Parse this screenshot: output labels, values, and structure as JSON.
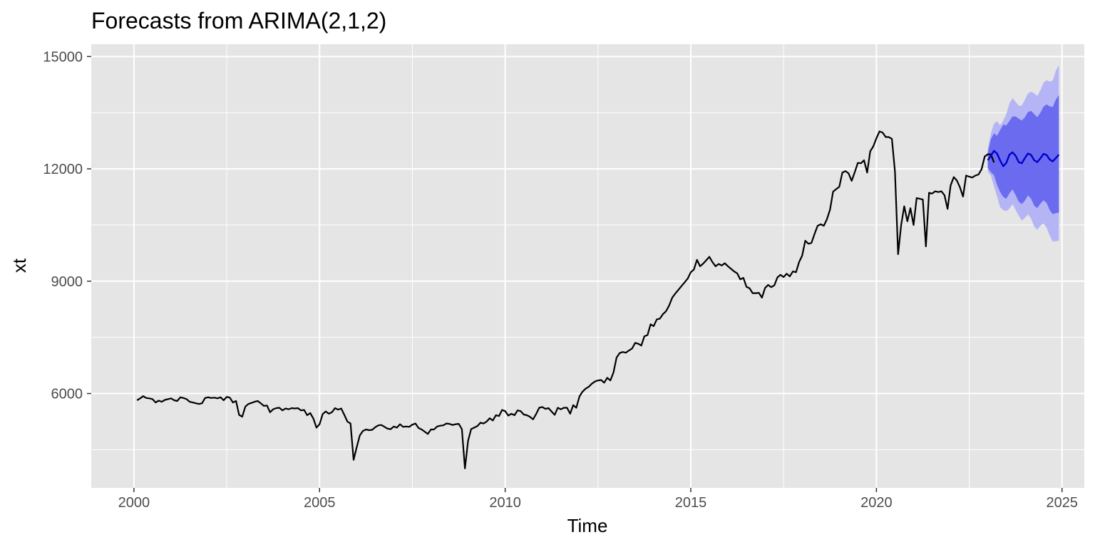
{
  "chart_data": {
    "type": "line",
    "title": "Forecasts from ARIMA(2,1,2)",
    "xlabel": "Time",
    "ylabel": "xt",
    "xlim": [
      1998.85,
      2025.6
    ],
    "ylim": [
      3480,
      15330
    ],
    "x_ticks": [
      2000,
      2005,
      2010,
      2015,
      2020,
      2025
    ],
    "x_tick_labels": [
      "2000",
      "2005",
      "2010",
      "2015",
      "2020",
      "2025"
    ],
    "y_ticks": [
      6000,
      9000,
      12000,
      15000
    ],
    "y_tick_labels": [
      "6000",
      "9000",
      "12000",
      "15000"
    ],
    "grid": true,
    "legend": "none",
    "colors": {
      "panel": "#e5e5e5",
      "grid": "#ffffff",
      "series": "#000000",
      "forecast": "#0000cc",
      "band80": "#6b6bf0",
      "band95": "#b5b5f5"
    },
    "series": [
      {
        "x_start": 2000.0833,
        "x_step": 0.0833333,
        "values": [
          5820,
          5870,
          5930,
          5880,
          5870,
          5850,
          5760,
          5810,
          5780,
          5830,
          5850,
          5870,
          5820,
          5800,
          5900,
          5880,
          5850,
          5780,
          5760,
          5740,
          5720,
          5740,
          5880,
          5900,
          5880,
          5890,
          5870,
          5900,
          5820,
          5910,
          5890,
          5760,
          5800,
          5430,
          5380,
          5650,
          5720,
          5750,
          5780,
          5800,
          5740,
          5670,
          5680,
          5500,
          5580,
          5610,
          5620,
          5550,
          5600,
          5580,
          5610,
          5600,
          5610,
          5550,
          5560,
          5420,
          5480,
          5330,
          5090,
          5180,
          5450,
          5520,
          5460,
          5500,
          5610,
          5570,
          5600,
          5430,
          5250,
          5200,
          4230,
          4560,
          4880,
          5000,
          5040,
          5020,
          5030,
          5100,
          5150,
          5160,
          5110,
          5060,
          5050,
          5120,
          5090,
          5180,
          5110,
          5120,
          5110,
          5170,
          5200,
          5080,
          5040,
          4980,
          4920,
          5040,
          5040,
          5120,
          5140,
          5150,
          5200,
          5190,
          5160,
          5180,
          5190,
          5050,
          4000,
          4740,
          5050,
          5090,
          5130,
          5220,
          5200,
          5250,
          5340,
          5280,
          5420,
          5400,
          5560,
          5530,
          5410,
          5460,
          5420,
          5550,
          5530,
          5440,
          5420,
          5380,
          5310,
          5450,
          5620,
          5640,
          5590,
          5610,
          5520,
          5430,
          5620,
          5580,
          5620,
          5620,
          5460,
          5690,
          5620,
          5920,
          6050,
          6130,
          6180,
          6260,
          6320,
          6350,
          6360,
          6290,
          6420,
          6350,
          6560,
          6960,
          7080,
          7110,
          7090,
          7150,
          7200,
          7350,
          7330,
          7280,
          7530,
          7560,
          7850,
          7800,
          7980,
          8000,
          8120,
          8200,
          8350,
          8560,
          8670,
          8770,
          8870,
          8970,
          9070,
          9240,
          9310,
          9570,
          9400,
          9470,
          9560,
          9650,
          9510,
          9400,
          9460,
          9420,
          9480,
          9400,
          9330,
          9260,
          9210,
          9050,
          9090,
          8850,
          8810,
          8680,
          8680,
          8690,
          8560,
          8820,
          8900,
          8840,
          8890,
          9100,
          9170,
          9110,
          9200,
          9130,
          9260,
          9240,
          9510,
          9680,
          10080,
          10000,
          10020,
          10260,
          10480,
          10520,
          10480,
          10650,
          10910,
          11390,
          11460,
          11520,
          11900,
          11940,
          11880,
          11680,
          11910,
          12160,
          12150,
          12230,
          11900,
          12470,
          12600,
          12820,
          13000,
          12970,
          12850,
          12850,
          12800,
          11930,
          9720,
          10500,
          11000,
          10600,
          10950,
          10500,
          11220,
          11200,
          11180,
          9930,
          11360,
          11340,
          11400,
          11380,
          11400,
          11300,
          10930,
          11560,
          11780,
          11690,
          11510,
          11260,
          11820,
          11790,
          11770,
          11820,
          11850,
          11990,
          12330,
          12390,
          12390,
          12170
        ]
      },
      {
        "name": "",
        "x_start": 2023.0,
        "x_step": 0.0833333,
        "points": 24,
        "mean": [
          12230,
          12350,
          12480,
          12410,
          12220,
          12070,
          12160,
          12380,
          12440,
          12350,
          12180,
          12150,
          12290,
          12410,
          12370,
          12230,
          12180,
          12280,
          12400,
          12370,
          12250,
          12200,
          12290,
          12380
        ],
        "lo80": [
          12030,
          11910,
          11830,
          11570,
          11380,
          11250,
          11200,
          11350,
          11450,
          11300,
          11120,
          11060,
          11150,
          11290,
          11200,
          11020,
          10950,
          11070,
          11160,
          11090,
          10900,
          10790,
          10820,
          10830
        ],
        "hi80": [
          12430,
          12790,
          12950,
          12880,
          13040,
          13180,
          13160,
          13280,
          13400,
          13400,
          13340,
          13290,
          13380,
          13520,
          13550,
          13460,
          13380,
          13500,
          13660,
          13720,
          13670,
          13650,
          13850,
          13970
        ],
        "lo95": [
          11920,
          11820,
          11530,
          11260,
          10970,
          10900,
          10870,
          10940,
          11060,
          10900,
          10750,
          10620,
          10690,
          10790,
          10670,
          10460,
          10370,
          10480,
          10540,
          10430,
          10220,
          10060,
          10070,
          10080
        ],
        "hi95": [
          12540,
          12950,
          13210,
          13270,
          13160,
          13290,
          13460,
          13750,
          13890,
          13790,
          13690,
          13690,
          13850,
          14010,
          14060,
          14020,
          13950,
          14100,
          14300,
          14370,
          14330,
          14360,
          14620,
          14770
        ]
      }
    ]
  }
}
